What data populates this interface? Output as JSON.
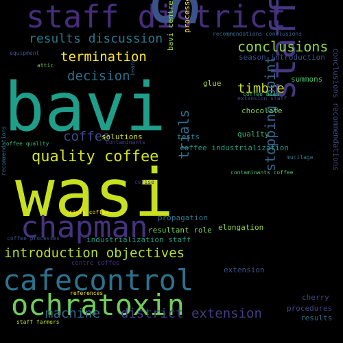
{
  "cloud": {
    "background": "#000000",
    "words": [
      {
        "text": "staff district",
        "color": "#472d7b"
      },
      {
        "text": "bavi",
        "color": "#1f9e89"
      },
      {
        "text": "staff",
        "color": "#3b528b"
      },
      {
        "text": "wasi",
        "color": "#c8e020"
      },
      {
        "text": "staff wasi",
        "color": "#453781"
      },
      {
        "text": "chapman",
        "color": "#46327e"
      },
      {
        "text": "cafecontrol",
        "color": "#2c728e"
      },
      {
        "text": "ochratoxin",
        "color": "#6ece58"
      },
      {
        "text": "quality coffee",
        "color": "#d2e21b"
      },
      {
        "text": "introduction objectives",
        "color": "#b5de2b"
      },
      {
        "text": "results discussion",
        "color": "#2a788e"
      },
      {
        "text": "termination",
        "color": "#fde725"
      },
      {
        "text": "conclusions",
        "color": "#8fd744"
      },
      {
        "text": "decision",
        "color": "#2d708e"
      },
      {
        "text": "timbre",
        "color": "#c2df23"
      },
      {
        "text": "coffee",
        "color": "#3e4989"
      },
      {
        "text": "trials",
        "color": "#2e6e8e"
      },
      {
        "text": "stopping point",
        "color": "#33638d"
      },
      {
        "text": "machine",
        "color": "#31688e"
      },
      {
        "text": "district extension",
        "color": "#433e85"
      },
      {
        "text": "solutions",
        "color": "#d8e219"
      },
      {
        "text": "tests",
        "color": "#26818e"
      },
      {
        "text": "processes equipment",
        "color": "#fde725"
      },
      {
        "text": "bavi centre",
        "color": "#a2da37"
      },
      {
        "text": "glue",
        "color": "#a8db34"
      },
      {
        "text": "coffee industrialization",
        "color": "#1e9b8a"
      },
      {
        "text": "quality",
        "color": "#35b779"
      },
      {
        "text": "chocolate",
        "color": "#7ad151"
      },
      {
        "text": "timbre",
        "color": "#c2df23"
      },
      {
        "text": "summons",
        "color": "#4ac16d"
      },
      {
        "text": "season introduction",
        "color": "#3b518b"
      },
      {
        "text": "recommendations conclusions",
        "color": "#31688e"
      },
      {
        "text": "coffee bean",
        "color": "#35b779"
      },
      {
        "text": "extension staff",
        "color": "#404588"
      },
      {
        "text": "mucilage",
        "color": "#2a788e"
      },
      {
        "text": "contaminants coffee",
        "color": "#4ac16d"
      },
      {
        "text": "conclusions recommendations",
        "color": "#3e4989"
      },
      {
        "text": "elongation",
        "color": "#8fd744"
      },
      {
        "text": "propagation",
        "color": "#2c738e"
      },
      {
        "text": "resultant role",
        "color": "#7ad151"
      },
      {
        "text": "industrialization staff",
        "color": "#1f9e89"
      },
      {
        "text": "centre coffee",
        "color": "#472f7d"
      },
      {
        "text": "extension",
        "color": "#3b528b"
      },
      {
        "text": "cherry",
        "color": "#3e4989"
      },
      {
        "text": "procedures",
        "color": "#3f4788"
      },
      {
        "text": "results",
        "color": "#2c728e"
      },
      {
        "text": "references",
        "color": "#fde725"
      },
      {
        "text": "staff farmers",
        "color": "#b5de2b"
      },
      {
        "text": "coffee quality",
        "color": "#32b67a"
      },
      {
        "text": "contaminants",
        "color": "#433e85"
      },
      {
        "text": "cerise",
        "color": "#46327e"
      },
      {
        "text": "trials coffee",
        "color": "#fde725"
      },
      {
        "text": "coffee processes",
        "color": "#3b528b"
      },
      {
        "text": "recommendations",
        "color": "#2e6e8e"
      },
      {
        "text": "equipment",
        "color": "#3b528b"
      },
      {
        "text": "attic",
        "color": "#6ece58"
      },
      {
        "text": "beans",
        "color": "#33638d"
      }
    ]
  }
}
